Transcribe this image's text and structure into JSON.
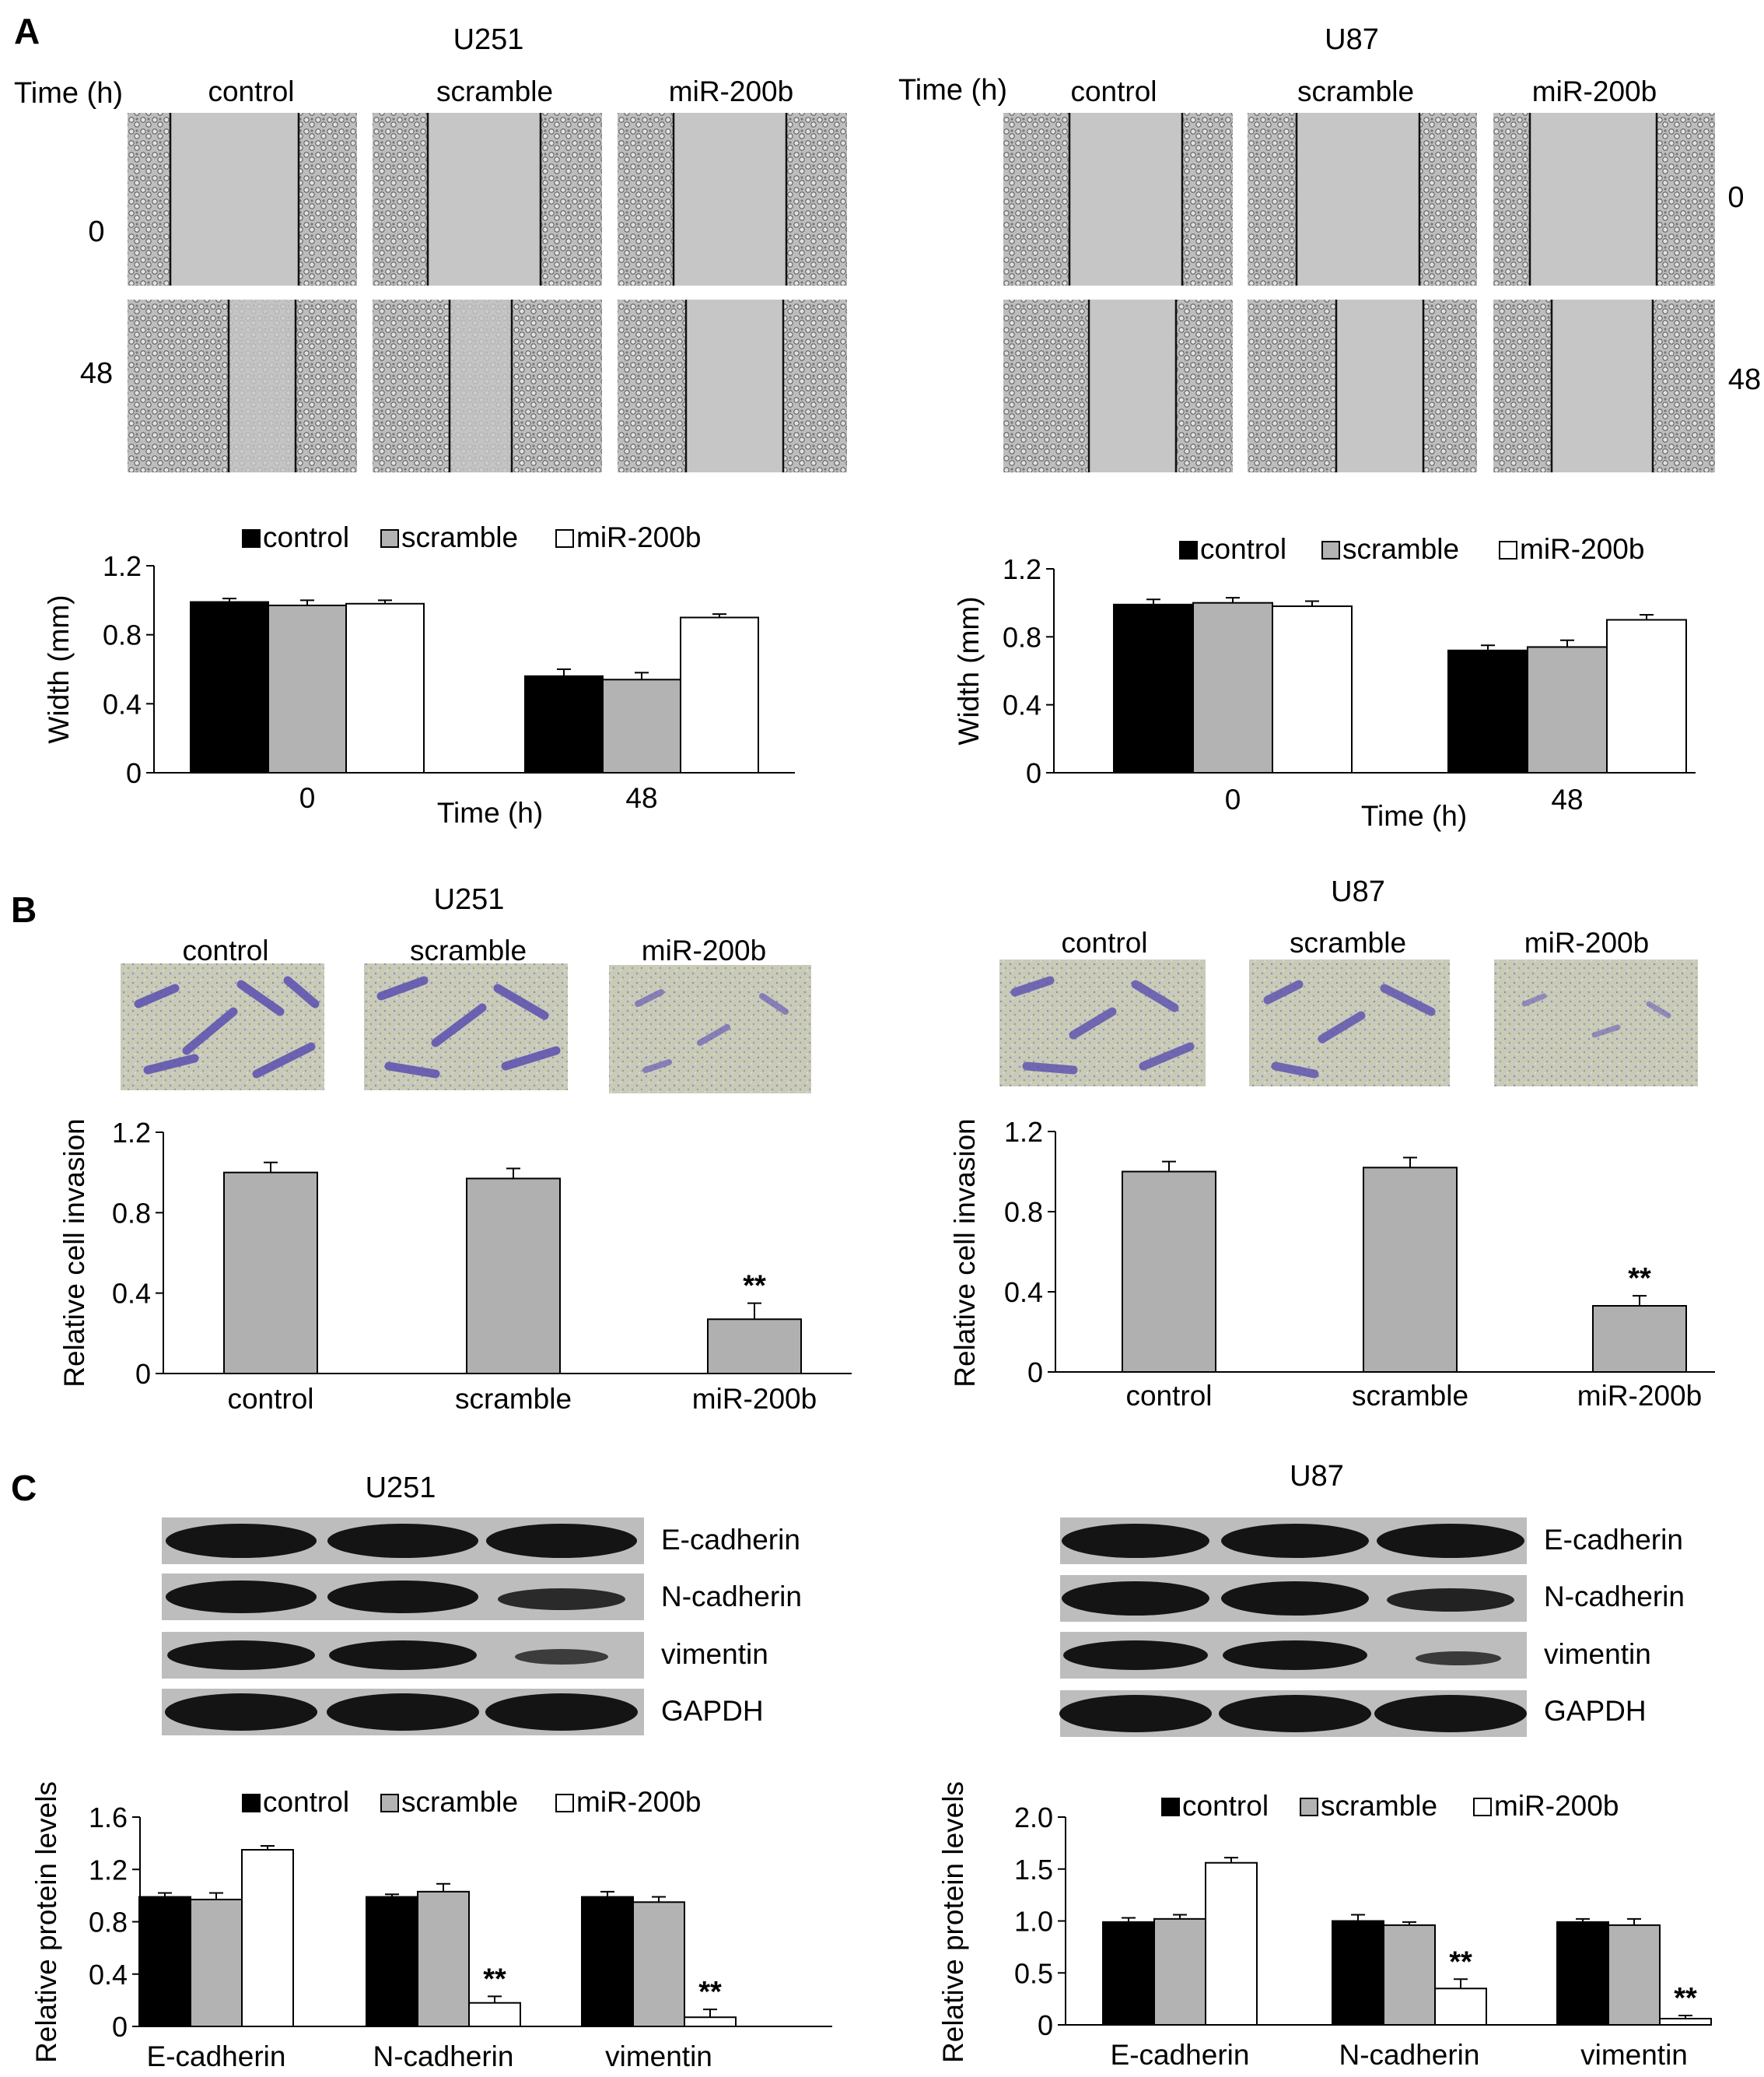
{
  "figure": {
    "panel_labels": [
      "A",
      "B",
      "C"
    ],
    "cell_lines": [
      "U251",
      "U87"
    ],
    "time_label": "Time (h)",
    "conditions": [
      "control",
      "scramble",
      "miR-200b"
    ],
    "time_points": [
      "0",
      "48"
    ],
    "proteins": [
      "E-cadherin",
      "N-cadherin",
      "vimentin",
      "GAPDH"
    ],
    "significance": "**",
    "colors": {
      "control": "#000000",
      "scramble": "#b3b3b3",
      "miR-200b": "#ffffff",
      "invasion_bar": "#b0b0b0",
      "micrograph_bg": "#c6c6c6",
      "stain": "#6a5fb5",
      "blot_band": "#141414",
      "blot_bg": "#bdbdbd"
    }
  },
  "chart_data": [
    {
      "id": "A-U251",
      "type": "bar",
      "title": "",
      "xlabel": "Time (h)",
      "ylabel": "Width (mm)",
      "categories": [
        "0",
        "48"
      ],
      "ylim": [
        0,
        1.2
      ],
      "yticks": [
        "0",
        "0.4",
        "0.8",
        "1.2"
      ],
      "legend": "top",
      "series": [
        {
          "name": "control",
          "values": [
            0.99,
            0.56
          ],
          "errors": [
            0.02,
            0.04
          ]
        },
        {
          "name": "scramble",
          "values": [
            0.97,
            0.54
          ],
          "errors": [
            0.03,
            0.04
          ]
        },
        {
          "name": "miR-200b",
          "values": [
            0.98,
            0.9
          ],
          "errors": [
            0.02,
            0.02
          ]
        }
      ]
    },
    {
      "id": "A-U87",
      "type": "bar",
      "title": "",
      "xlabel": "Time (h)",
      "ylabel": "Width (mm)",
      "categories": [
        "0",
        "48"
      ],
      "ylim": [
        0,
        1.2
      ],
      "yticks": [
        "0",
        "0.4",
        "0.8",
        "1.2"
      ],
      "legend": "top",
      "series": [
        {
          "name": "control",
          "values": [
            0.99,
            0.72
          ],
          "errors": [
            0.03,
            0.03
          ]
        },
        {
          "name": "scramble",
          "values": [
            1.0,
            0.74
          ],
          "errors": [
            0.03,
            0.04
          ]
        },
        {
          "name": "miR-200b",
          "values": [
            0.98,
            0.9
          ],
          "errors": [
            0.03,
            0.03
          ]
        }
      ]
    },
    {
      "id": "B-U251",
      "type": "bar",
      "title": "",
      "xlabel": "",
      "ylabel": "Relative cell invasion",
      "categories": [
        "control",
        "scramble",
        "miR-200b"
      ],
      "ylim": [
        0,
        1.2
      ],
      "yticks": [
        "0",
        "0.4",
        "0.8",
        "1.2"
      ],
      "series": [
        {
          "values": [
            1.0,
            0.97,
            0.27
          ],
          "errors": [
            0.05,
            0.05,
            0.08
          ],
          "marks": [
            "",
            "",
            "**"
          ]
        }
      ]
    },
    {
      "id": "B-U87",
      "type": "bar",
      "title": "",
      "xlabel": "",
      "ylabel": "Relative cell invasion",
      "categories": [
        "control",
        "scramble",
        "miR-200b"
      ],
      "ylim": [
        0,
        1.2
      ],
      "yticks": [
        "0",
        "0.4",
        "0.8",
        "1.2"
      ],
      "series": [
        {
          "values": [
            1.0,
            1.02,
            0.33
          ],
          "errors": [
            0.05,
            0.05,
            0.05
          ],
          "marks": [
            "",
            "",
            "**"
          ]
        }
      ]
    },
    {
      "id": "C-U251",
      "type": "bar",
      "title": "",
      "xlabel": "",
      "ylabel": "Relative protein levels",
      "categories": [
        "E-cadherin",
        "N-cadherin",
        "vimentin"
      ],
      "ylim": [
        0,
        1.6
      ],
      "yticks": [
        "0",
        "0.4",
        "0.8",
        "1.2",
        "1.6"
      ],
      "legend": "top",
      "series": [
        {
          "name": "control",
          "values": [
            0.99,
            0.99,
            0.99
          ],
          "errors": [
            0.03,
            0.02,
            0.04
          ],
          "marks": [
            "",
            "",
            ""
          ]
        },
        {
          "name": "scramble",
          "values": [
            0.97,
            1.03,
            0.95
          ],
          "errors": [
            0.05,
            0.06,
            0.04
          ],
          "marks": [
            "",
            "",
            ""
          ]
        },
        {
          "name": "miR-200b",
          "values": [
            1.35,
            0.18,
            0.07
          ],
          "errors": [
            0.03,
            0.05,
            0.06
          ],
          "marks": [
            "",
            "**",
            "**"
          ]
        }
      ]
    },
    {
      "id": "C-U87",
      "type": "bar",
      "title": "",
      "xlabel": "",
      "ylabel": "Relative protein levels",
      "categories": [
        "E-cadherin",
        "N-cadherin",
        "vimentin"
      ],
      "ylim": [
        0,
        2.0
      ],
      "yticks": [
        "0",
        "0.5",
        "1.0",
        "1.5",
        "2.0"
      ],
      "legend": "top",
      "series": [
        {
          "name": "control",
          "values": [
            0.99,
            1.0,
            0.99
          ],
          "errors": [
            0.04,
            0.06,
            0.03
          ],
          "marks": [
            "",
            "",
            ""
          ]
        },
        {
          "name": "scramble",
          "values": [
            1.02,
            0.96,
            0.96
          ],
          "errors": [
            0.04,
            0.03,
            0.06
          ],
          "marks": [
            "",
            "",
            ""
          ]
        },
        {
          "name": "miR-200b",
          "values": [
            1.56,
            0.35,
            0.06
          ],
          "errors": [
            0.05,
            0.09,
            0.03
          ],
          "marks": [
            "",
            "**",
            "**"
          ]
        }
      ]
    }
  ]
}
